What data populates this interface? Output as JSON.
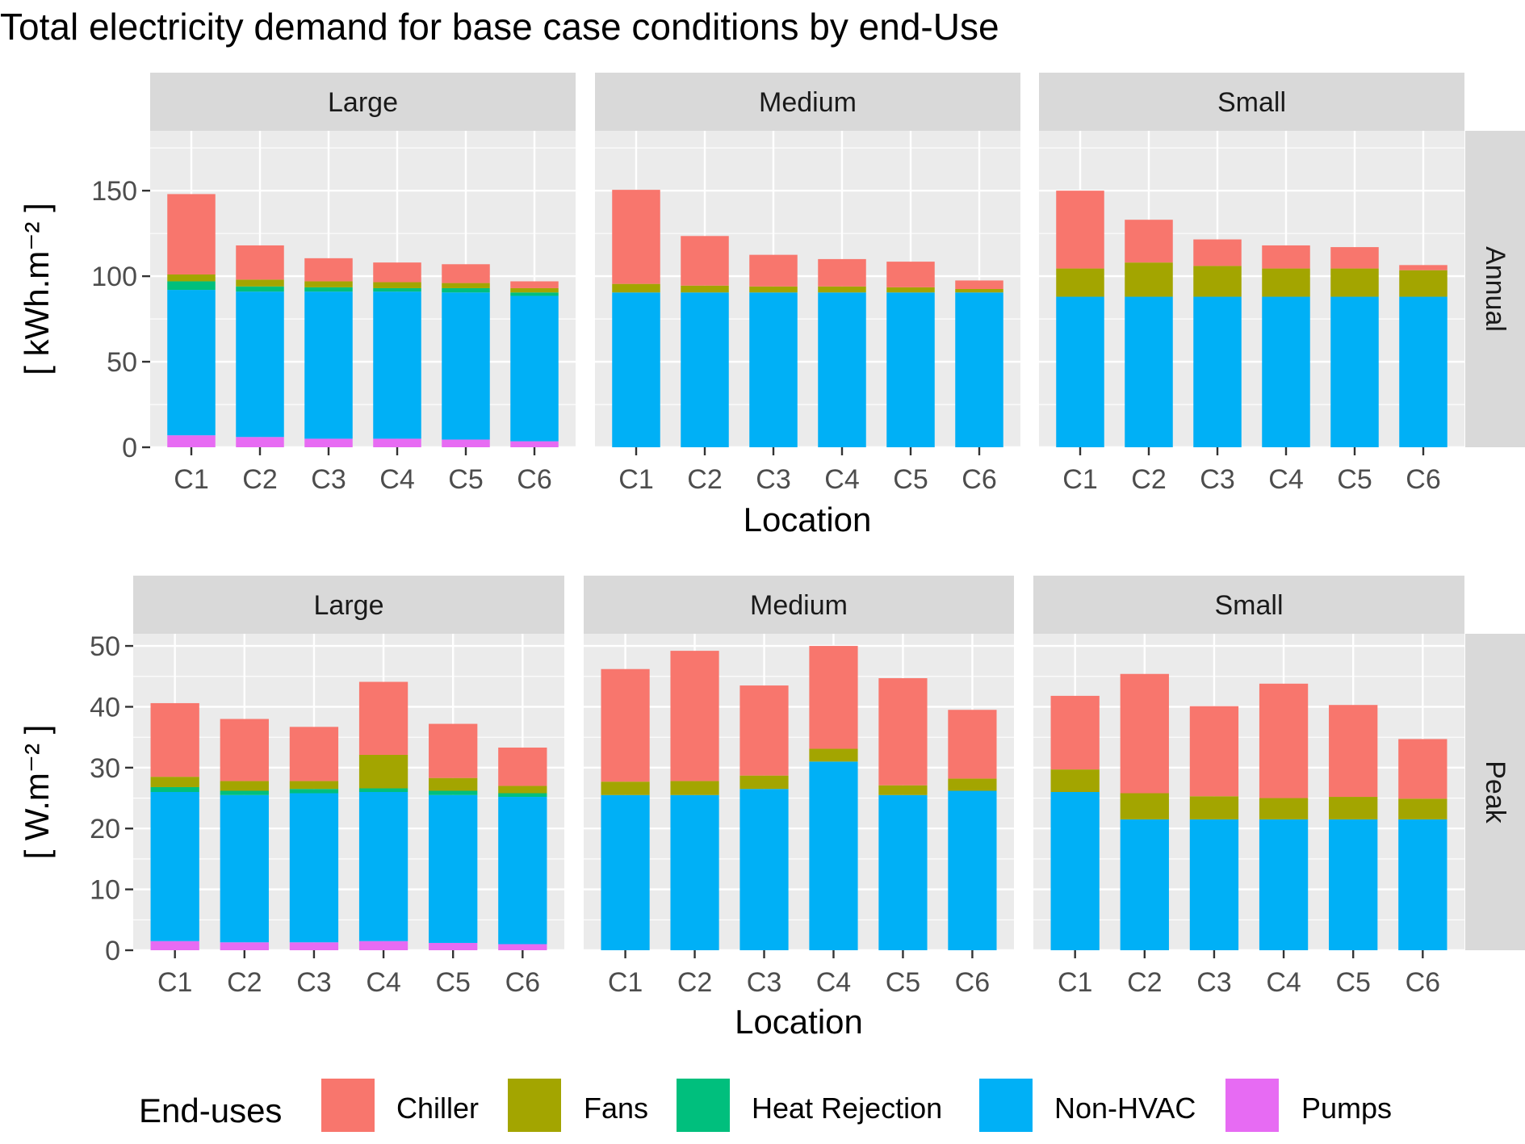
{
  "title": "Total electricity demand for base case conditions by end-Use",
  "legend": {
    "title": "End-uses",
    "items": [
      {
        "label": "Chiller",
        "color": "#F8766D"
      },
      {
        "label": "Fans",
        "color": "#A3A500"
      },
      {
        "label": "Heat Rejection",
        "color": "#00BF7D"
      },
      {
        "label": "Non-HVAC",
        "color": "#00B0F6"
      },
      {
        "label": "Pumps",
        "color": "#E76BF3"
      }
    ]
  },
  "chart_data": [
    {
      "type": "bar",
      "stacked": true,
      "row_label": "Annual",
      "ylabel": "[ kWh.m⁻² ]",
      "xlabel": "Location",
      "ylim": [
        0,
        185
      ],
      "yticks": [
        0,
        50,
        100,
        150
      ],
      "grid": true,
      "categories": [
        "C1",
        "C2",
        "C3",
        "C4",
        "C5",
        "C6"
      ],
      "stack_order": [
        "Pumps",
        "Non-HVAC",
        "Heat Rejection",
        "Fans",
        "Chiller"
      ],
      "facets": [
        {
          "label": "Large",
          "series": [
            {
              "name": "Pumps",
              "values": [
                7,
                6,
                5,
                5,
                4.5,
                3.5
              ]
            },
            {
              "name": "Non-HVAC",
              "values": [
                85,
                85,
                86,
                86,
                86,
                85
              ]
            },
            {
              "name": "Heat Rejection",
              "values": [
                5,
                3,
                2.5,
                2,
                2.5,
                2
              ]
            },
            {
              "name": "Fans",
              "values": [
                4,
                4,
                3.5,
                3.5,
                3,
                2.5
              ]
            },
            {
              "name": "Chiller",
              "values": [
                47,
                20,
                13.5,
                11.5,
                11,
                4
              ]
            }
          ]
        },
        {
          "label": "Medium",
          "series": [
            {
              "name": "Pumps",
              "values": [
                0,
                0,
                0,
                0,
                0,
                0
              ]
            },
            {
              "name": "Non-HVAC",
              "values": [
                90.5,
                90.5,
                90.5,
                90.5,
                90.5,
                90.5
              ]
            },
            {
              "name": "Heat Rejection",
              "values": [
                0,
                0,
                0,
                0,
                0,
                0
              ]
            },
            {
              "name": "Fans",
              "values": [
                5,
                4,
                3.5,
                3.5,
                3,
                2
              ]
            },
            {
              "name": "Chiller",
              "values": [
                55,
                29,
                18.5,
                16,
                15,
                5
              ]
            }
          ]
        },
        {
          "label": "Small",
          "series": [
            {
              "name": "Pumps",
              "values": [
                0,
                0,
                0,
                0,
                0,
                0
              ]
            },
            {
              "name": "Non-HVAC",
              "values": [
                88,
                88,
                88,
                88,
                88,
                88
              ]
            },
            {
              "name": "Heat Rejection",
              "values": [
                0,
                0,
                0,
                0,
                0,
                0
              ]
            },
            {
              "name": "Fans",
              "values": [
                16.5,
                20,
                18,
                16.5,
                16.5,
                15.5
              ]
            },
            {
              "name": "Chiller",
              "values": [
                45.5,
                25,
                15.5,
                13.5,
                12.5,
                3
              ]
            }
          ]
        }
      ]
    },
    {
      "type": "bar",
      "stacked": true,
      "row_label": "Peak",
      "ylabel": "[ W.m⁻² ]",
      "xlabel": "Location",
      "ylim": [
        0,
        52
      ],
      "yticks": [
        0,
        10,
        20,
        30,
        40,
        50
      ],
      "grid": true,
      "categories": [
        "C1",
        "C2",
        "C3",
        "C4",
        "C5",
        "C6"
      ],
      "stack_order": [
        "Pumps",
        "Non-HVAC",
        "Heat Rejection",
        "Fans",
        "Chiller"
      ],
      "facets": [
        {
          "label": "Large",
          "series": [
            {
              "name": "Pumps",
              "values": [
                1.5,
                1.3,
                1.3,
                1.5,
                1.2,
                1
              ]
            },
            {
              "name": "Non-HVAC",
              "values": [
                24.5,
                24.2,
                24.5,
                24.5,
                24.3,
                24.2
              ]
            },
            {
              "name": "Heat Rejection",
              "values": [
                0.8,
                0.7,
                0.7,
                0.6,
                0.7,
                0.6
              ]
            },
            {
              "name": "Fans",
              "values": [
                1.7,
                1.6,
                1.3,
                5.5,
                2.1,
                1.2
              ]
            },
            {
              "name": "Chiller",
              "values": [
                12.1,
                10.2,
                8.9,
                12,
                8.9,
                6.3
              ]
            }
          ]
        },
        {
          "label": "Medium",
          "series": [
            {
              "name": "Pumps",
              "values": [
                0,
                0,
                0,
                0,
                0,
                0
              ]
            },
            {
              "name": "Non-HVAC",
              "values": [
                25.5,
                25.5,
                26.5,
                31,
                25.5,
                26.2
              ]
            },
            {
              "name": "Heat Rejection",
              "values": [
                0,
                0,
                0,
                0,
                0,
                0
              ]
            },
            {
              "name": "Fans",
              "values": [
                2.2,
                2.3,
                2.2,
                2.1,
                1.6,
                2
              ]
            },
            {
              "name": "Chiller",
              "values": [
                18.5,
                21.4,
                14.8,
                16.9,
                17.6,
                11.3
              ]
            }
          ]
        },
        {
          "label": "Small",
          "series": [
            {
              "name": "Pumps",
              "values": [
                0,
                0,
                0,
                0,
                0,
                0
              ]
            },
            {
              "name": "Non-HVAC",
              "values": [
                26,
                21.5,
                21.5,
                21.5,
                21.5,
                21.5
              ]
            },
            {
              "name": "Heat Rejection",
              "values": [
                0,
                0,
                0,
                0,
                0,
                0
              ]
            },
            {
              "name": "Fans",
              "values": [
                3.7,
                4.3,
                3.8,
                3.5,
                3.7,
                3.4
              ]
            },
            {
              "name": "Chiller",
              "values": [
                12.1,
                19.6,
                14.8,
                18.8,
                15.1,
                9.8
              ]
            }
          ]
        }
      ]
    }
  ]
}
